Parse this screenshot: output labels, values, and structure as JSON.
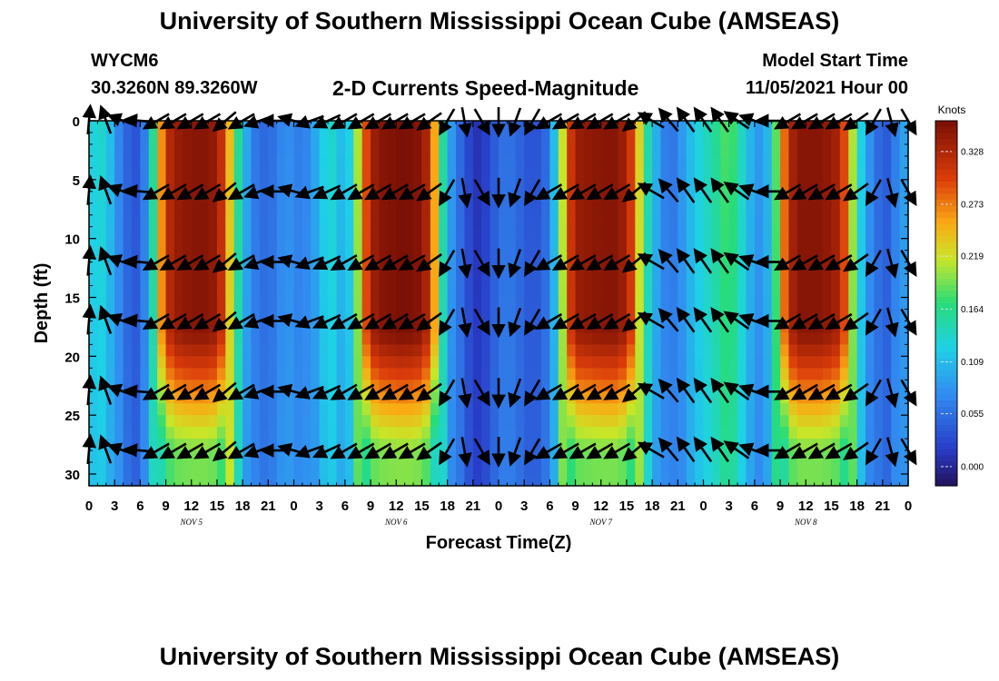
{
  "header": {
    "title": "University of Southern Mississippi Ocean Cube (AMSEAS)",
    "station": "WYCM6",
    "coords": "30.3260N  89.3260W",
    "subtitle": "2-D Currents Speed-Magnitude",
    "model_start_label": "Model Start Time",
    "model_start_value": "11/05/2021 Hour 00"
  },
  "footer": {
    "title": "University of Southern Mississippi Ocean Cube (AMSEAS)"
  },
  "chart_data": {
    "type": "heatmap",
    "xlabel": "Forecast Time(Z)",
    "ylabel": "Depth (ft)",
    "x_tick_labels": [
      "0",
      "3",
      "6",
      "9",
      "12",
      "15",
      "18",
      "21",
      "0",
      "3",
      "6",
      "9",
      "12",
      "15",
      "18",
      "21",
      "0",
      "3",
      "6",
      "9",
      "12",
      "15",
      "18",
      "21",
      "0",
      "3",
      "6",
      "9",
      "12",
      "15",
      "18",
      "21",
      "0"
    ],
    "x_range_hours": [
      0,
      96
    ],
    "day_labels": [
      {
        "text": "NOV 5",
        "hour": 12
      },
      {
        "text": "NOV 6",
        "hour": 36
      },
      {
        "text": "NOV 7",
        "hour": 60
      },
      {
        "text": "NOV 8",
        "hour": 84
      }
    ],
    "y_ticks": [
      0,
      5,
      10,
      15,
      20,
      25,
      30
    ],
    "y_range_ft": [
      0,
      31
    ],
    "y_inverted": true,
    "colorbar": {
      "unit": "Knots",
      "ticks": [
        "0.328",
        "0.273",
        "0.219",
        "0.164",
        "0.109",
        "0.055",
        "0.000"
      ],
      "range": [
        -0.02,
        0.36
      ]
    },
    "speed_profile_by_hour": [
      [
        0,
        0.12
      ],
      [
        1,
        0.14
      ],
      [
        2,
        0.13
      ],
      [
        3,
        0.09
      ],
      [
        4,
        0.05
      ],
      [
        5,
        0.04
      ],
      [
        6,
        0.03
      ],
      [
        7,
        0.1
      ],
      [
        8,
        0.22
      ],
      [
        9,
        0.31
      ],
      [
        10,
        0.34
      ],
      [
        12,
        0.35
      ],
      [
        14,
        0.35
      ],
      [
        15,
        0.34
      ],
      [
        16,
        0.29
      ],
      [
        17,
        0.2
      ],
      [
        18,
        0.12
      ],
      [
        19,
        0.07
      ],
      [
        20,
        0.05
      ],
      [
        21,
        0.05
      ],
      [
        22,
        0.06
      ],
      [
        23,
        0.08
      ],
      [
        24,
        0.07
      ],
      [
        25,
        0.06
      ],
      [
        26,
        0.08
      ],
      [
        27,
        0.11
      ],
      [
        28,
        0.14
      ],
      [
        29,
        0.13
      ],
      [
        30,
        0.09
      ],
      [
        31,
        0.16
      ],
      [
        32,
        0.26
      ],
      [
        33,
        0.33
      ],
      [
        34,
        0.35
      ],
      [
        37,
        0.36
      ],
      [
        39,
        0.35
      ],
      [
        40,
        0.31
      ],
      [
        41,
        0.2
      ],
      [
        42,
        0.11
      ],
      [
        43,
        0.06
      ],
      [
        44,
        0.04
      ],
      [
        45,
        0.01
      ],
      [
        46,
        0.01
      ],
      [
        47,
        0.03
      ],
      [
        48,
        0.05
      ],
      [
        49,
        0.06
      ],
      [
        50,
        0.05
      ],
      [
        51,
        0.04
      ],
      [
        52,
        0.03
      ],
      [
        53,
        0.04
      ],
      [
        54,
        0.06
      ],
      [
        55,
        0.16
      ],
      [
        56,
        0.28
      ],
      [
        57,
        0.34
      ],
      [
        60,
        0.35
      ],
      [
        62,
        0.35
      ],
      [
        63,
        0.33
      ],
      [
        64,
        0.28
      ],
      [
        65,
        0.18
      ],
      [
        66,
        0.12
      ],
      [
        67,
        0.08
      ],
      [
        68,
        0.05
      ],
      [
        69,
        0.07
      ],
      [
        70,
        0.1
      ],
      [
        71,
        0.12
      ],
      [
        72,
        0.14
      ],
      [
        73,
        0.15
      ],
      [
        74,
        0.17
      ],
      [
        75,
        0.19
      ],
      [
        76,
        0.16
      ],
      [
        77,
        0.12
      ],
      [
        78,
        0.09
      ],
      [
        79,
        0.08
      ],
      [
        80,
        0.13
      ],
      [
        81,
        0.24
      ],
      [
        82,
        0.32
      ],
      [
        83,
        0.35
      ],
      [
        86,
        0.35
      ],
      [
        88,
        0.33
      ],
      [
        89,
        0.26
      ],
      [
        90,
        0.16
      ],
      [
        91,
        0.09
      ],
      [
        92,
        0.07
      ],
      [
        93,
        0.03
      ],
      [
        94,
        0.05
      ],
      [
        95,
        0.08
      ],
      [
        96,
        0.1
      ]
    ],
    "vector_depths_ft": [
      0,
      6,
      12,
      17,
      23,
      28
    ],
    "vector_direction_by_hour": [
      [
        0,
        275
      ],
      [
        2,
        250
      ],
      [
        4,
        200
      ],
      [
        6,
        185
      ],
      [
        8,
        150
      ],
      [
        14,
        150
      ],
      [
        16,
        140
      ],
      [
        18,
        150
      ],
      [
        20,
        160
      ],
      [
        22,
        180
      ],
      [
        24,
        195
      ],
      [
        26,
        160
      ],
      [
        30,
        150
      ],
      [
        38,
        150
      ],
      [
        40,
        145
      ],
      [
        42,
        120
      ],
      [
        44,
        80
      ],
      [
        46,
        60
      ],
      [
        48,
        90
      ],
      [
        50,
        110
      ],
      [
        52,
        120
      ],
      [
        54,
        150
      ],
      [
        62,
        150
      ],
      [
        64,
        140
      ],
      [
        66,
        210
      ],
      [
        68,
        230
      ],
      [
        70,
        235
      ],
      [
        74,
        235
      ],
      [
        76,
        215
      ],
      [
        78,
        200
      ],
      [
        80,
        180
      ],
      [
        82,
        150
      ],
      [
        88,
        150
      ],
      [
        90,
        145
      ],
      [
        92,
        120
      ],
      [
        94,
        75
      ],
      [
        96,
        60
      ]
    ]
  }
}
